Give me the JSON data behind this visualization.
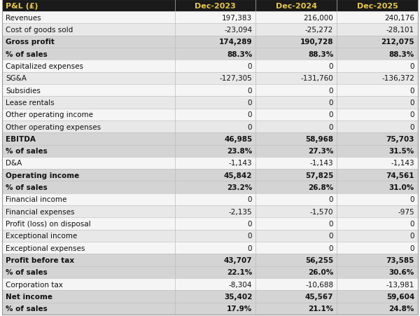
{
  "header_bg": "#1a1a1a",
  "header_text_color": "#e8c84a",
  "alt_row_bg": "#e8e8e8",
  "normal_row_bg": "#f5f5f5",
  "bold_row_bg": "#d4d4d4",
  "header_font_size": 8.0,
  "body_font_size": 7.5,
  "col0_label": "P&L (£)",
  "col1_label": "Dec-2023",
  "col2_label": "Dec-2024",
  "col3_label": "Dec-2025",
  "rows": [
    {
      "label": "Revenues",
      "v1": "197,383",
      "v2": "216,000",
      "v3": "240,176",
      "bold": false,
      "shaded": false,
      "alt": false
    },
    {
      "label": "Cost of goods sold",
      "v1": "-23,094",
      "v2": "-25,272",
      "v3": "-28,101",
      "bold": false,
      "shaded": false,
      "alt": true
    },
    {
      "label": "Gross profit",
      "v1": "174,289",
      "v2": "190,728",
      "v3": "212,075",
      "bold": true,
      "shaded": true,
      "alt": false
    },
    {
      "label": "% of sales",
      "v1": "88.3%",
      "v2": "88.3%",
      "v3": "88.3%",
      "bold": true,
      "shaded": true,
      "alt": false
    },
    {
      "label": "Capitalized expenses",
      "v1": "0",
      "v2": "0",
      "v3": "0",
      "bold": false,
      "shaded": false,
      "alt": false
    },
    {
      "label": "SG&A",
      "v1": "-127,305",
      "v2": "-131,760",
      "v3": "-136,372",
      "bold": false,
      "shaded": false,
      "alt": true
    },
    {
      "label": "Subsidies",
      "v1": "0",
      "v2": "0",
      "v3": "0",
      "bold": false,
      "shaded": false,
      "alt": false
    },
    {
      "label": "Lease rentals",
      "v1": "0",
      "v2": "0",
      "v3": "0",
      "bold": false,
      "shaded": false,
      "alt": true
    },
    {
      "label": "Other operating income",
      "v1": "0",
      "v2": "0",
      "v3": "0",
      "bold": false,
      "shaded": false,
      "alt": false
    },
    {
      "label": "Other operating expenses",
      "v1": "0",
      "v2": "0",
      "v3": "0",
      "bold": false,
      "shaded": false,
      "alt": true
    },
    {
      "label": "EBITDA",
      "v1": "46,985",
      "v2": "58,968",
      "v3": "75,703",
      "bold": true,
      "shaded": true,
      "alt": false
    },
    {
      "label": "% of sales",
      "v1": "23.8%",
      "v2": "27.3%",
      "v3": "31.5%",
      "bold": true,
      "shaded": true,
      "alt": false
    },
    {
      "label": "D&A",
      "v1": "-1,143",
      "v2": "-1,143",
      "v3": "-1,143",
      "bold": false,
      "shaded": false,
      "alt": false
    },
    {
      "label": "Operating income",
      "v1": "45,842",
      "v2": "57,825",
      "v3": "74,561",
      "bold": true,
      "shaded": true,
      "alt": false
    },
    {
      "label": "% of sales",
      "v1": "23.2%",
      "v2": "26.8%",
      "v3": "31.0%",
      "bold": true,
      "shaded": true,
      "alt": false
    },
    {
      "label": "Financial income",
      "v1": "0",
      "v2": "0",
      "v3": "0",
      "bold": false,
      "shaded": false,
      "alt": false
    },
    {
      "label": "Financial expenses",
      "v1": "-2,135",
      "v2": "-1,570",
      "v3": "-975",
      "bold": false,
      "shaded": false,
      "alt": true
    },
    {
      "label": "Profit (loss) on disposal",
      "v1": "0",
      "v2": "0",
      "v3": "0",
      "bold": false,
      "shaded": false,
      "alt": false
    },
    {
      "label": "Exceptional income",
      "v1": "0",
      "v2": "0",
      "v3": "0",
      "bold": false,
      "shaded": false,
      "alt": true
    },
    {
      "label": "Exceptional expenses",
      "v1": "0",
      "v2": "0",
      "v3": "0",
      "bold": false,
      "shaded": false,
      "alt": false
    },
    {
      "label": "Profit before tax",
      "v1": "43,707",
      "v2": "56,255",
      "v3": "73,585",
      "bold": true,
      "shaded": true,
      "alt": false
    },
    {
      "label": "% of sales",
      "v1": "22.1%",
      "v2": "26.0%",
      "v3": "30.6%",
      "bold": true,
      "shaded": true,
      "alt": false
    },
    {
      "label": "Corporation tax",
      "v1": "-8,304",
      "v2": "-10,688",
      "v3": "-13,981",
      "bold": false,
      "shaded": false,
      "alt": false
    },
    {
      "label": "Net income",
      "v1": "35,402",
      "v2": "45,567",
      "v3": "59,604",
      "bold": true,
      "shaded": true,
      "alt": false
    },
    {
      "label": "% of sales",
      "v1": "17.9%",
      "v2": "21.1%",
      "v3": "24.8%",
      "bold": true,
      "shaded": true,
      "alt": false
    }
  ]
}
